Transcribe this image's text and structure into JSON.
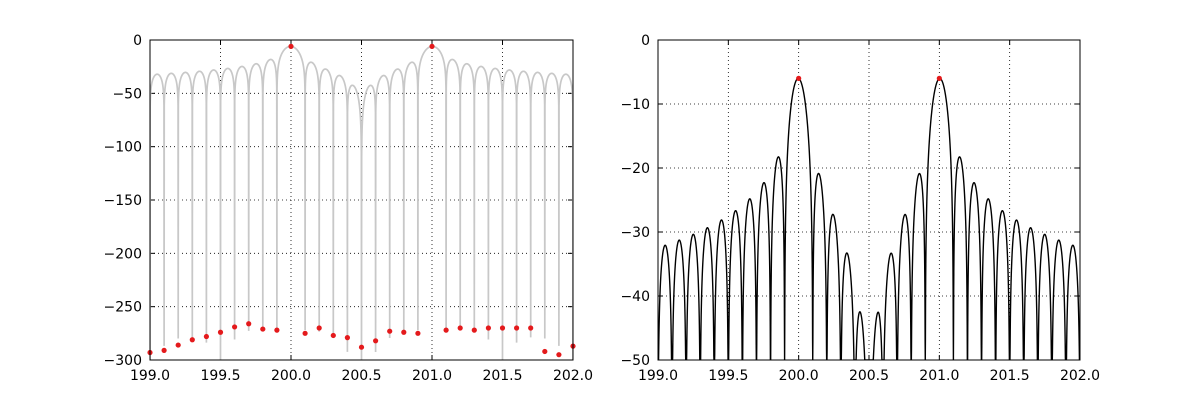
{
  "chart_data": [
    {
      "type": "line",
      "title": "",
      "xlabel": "",
      "ylabel": "",
      "xlim": [
        199.0,
        202.0
      ],
      "ylim": [
        -300,
        0
      ],
      "xticks": [
        "199.0",
        "199.5",
        "200.0",
        "200.5",
        "201.0",
        "201.5",
        "202.0"
      ],
      "yticks": [
        "0",
        "−50",
        "−100",
        "−150",
        "−200",
        "−250",
        "−300"
      ],
      "grid": true,
      "legend": "none",
      "series": [
        {
          "kind": "line",
          "color": "#c8c8c8",
          "description_values": {
            "main_peaks": [
              {
                "x": 200.0,
                "y": -6
              },
              {
                "x": 201.0,
                "y": -6
              }
            ],
            "sidelobe_level_range": [
              -45,
              -26
            ],
            "zero_floor": -300
          }
        },
        {
          "kind": "markers",
          "color": "#e41a1c",
          "x": [
            199.0,
            199.1,
            199.2,
            199.3,
            199.4,
            199.5,
            199.6,
            199.7,
            199.8,
            199.9,
            200.0,
            200.1,
            200.2,
            200.3,
            200.4,
            200.5,
            200.6,
            200.7,
            200.8,
            200.9,
            201.0,
            201.1,
            201.2,
            201.3,
            201.4,
            201.5,
            201.6,
            201.7,
            201.8,
            201.9,
            202.0
          ],
          "y": [
            -293,
            -291,
            -286,
            -281,
            -278,
            -274,
            -269,
            -266,
            -271,
            -272,
            -6,
            -275,
            -270,
            -277,
            -279,
            -288,
            -282,
            -273,
            -274,
            -275,
            -6,
            -272,
            -270,
            -272,
            -270,
            -270,
            -270,
            -270,
            -292,
            -295,
            -287
          ]
        }
      ]
    },
    {
      "type": "line",
      "title": "",
      "xlabel": "",
      "ylabel": "",
      "xlim": [
        199.0,
        202.0
      ],
      "ylim": [
        -50,
        0
      ],
      "xticks": [
        "199.0",
        "199.5",
        "200.0",
        "200.5",
        "201.0",
        "201.5",
        "202.0"
      ],
      "yticks": [
        "0",
        "−10",
        "−20",
        "−30",
        "−40",
        "−50"
      ],
      "grid": true,
      "legend": "none",
      "series": [
        {
          "kind": "line",
          "color": "#000000",
          "description_values": {
            "main_peaks": [
              {
                "x": 200.0,
                "y": -6
              },
              {
                "x": 201.0,
                "y": -6
              }
            ],
            "sidelobe_peaks_left": [
              -32,
              -31,
              -30,
              -29,
              -28,
              -27,
              -26,
              -24,
              -22,
              -18
            ],
            "sidelobe_peaks_between": [
              -21,
              -27,
              -33,
              -42,
              -43,
              -33,
              -27,
              -21
            ],
            "sidelobe_peaks_right": [
              -18,
              -22,
              -24,
              -26,
              -27,
              -28,
              -29,
              -30,
              -31,
              -32
            ]
          }
        },
        {
          "kind": "markers",
          "color": "#e41a1c",
          "x": [
            200.0,
            201.0
          ],
          "y": [
            -6,
            -6
          ]
        }
      ]
    }
  ]
}
